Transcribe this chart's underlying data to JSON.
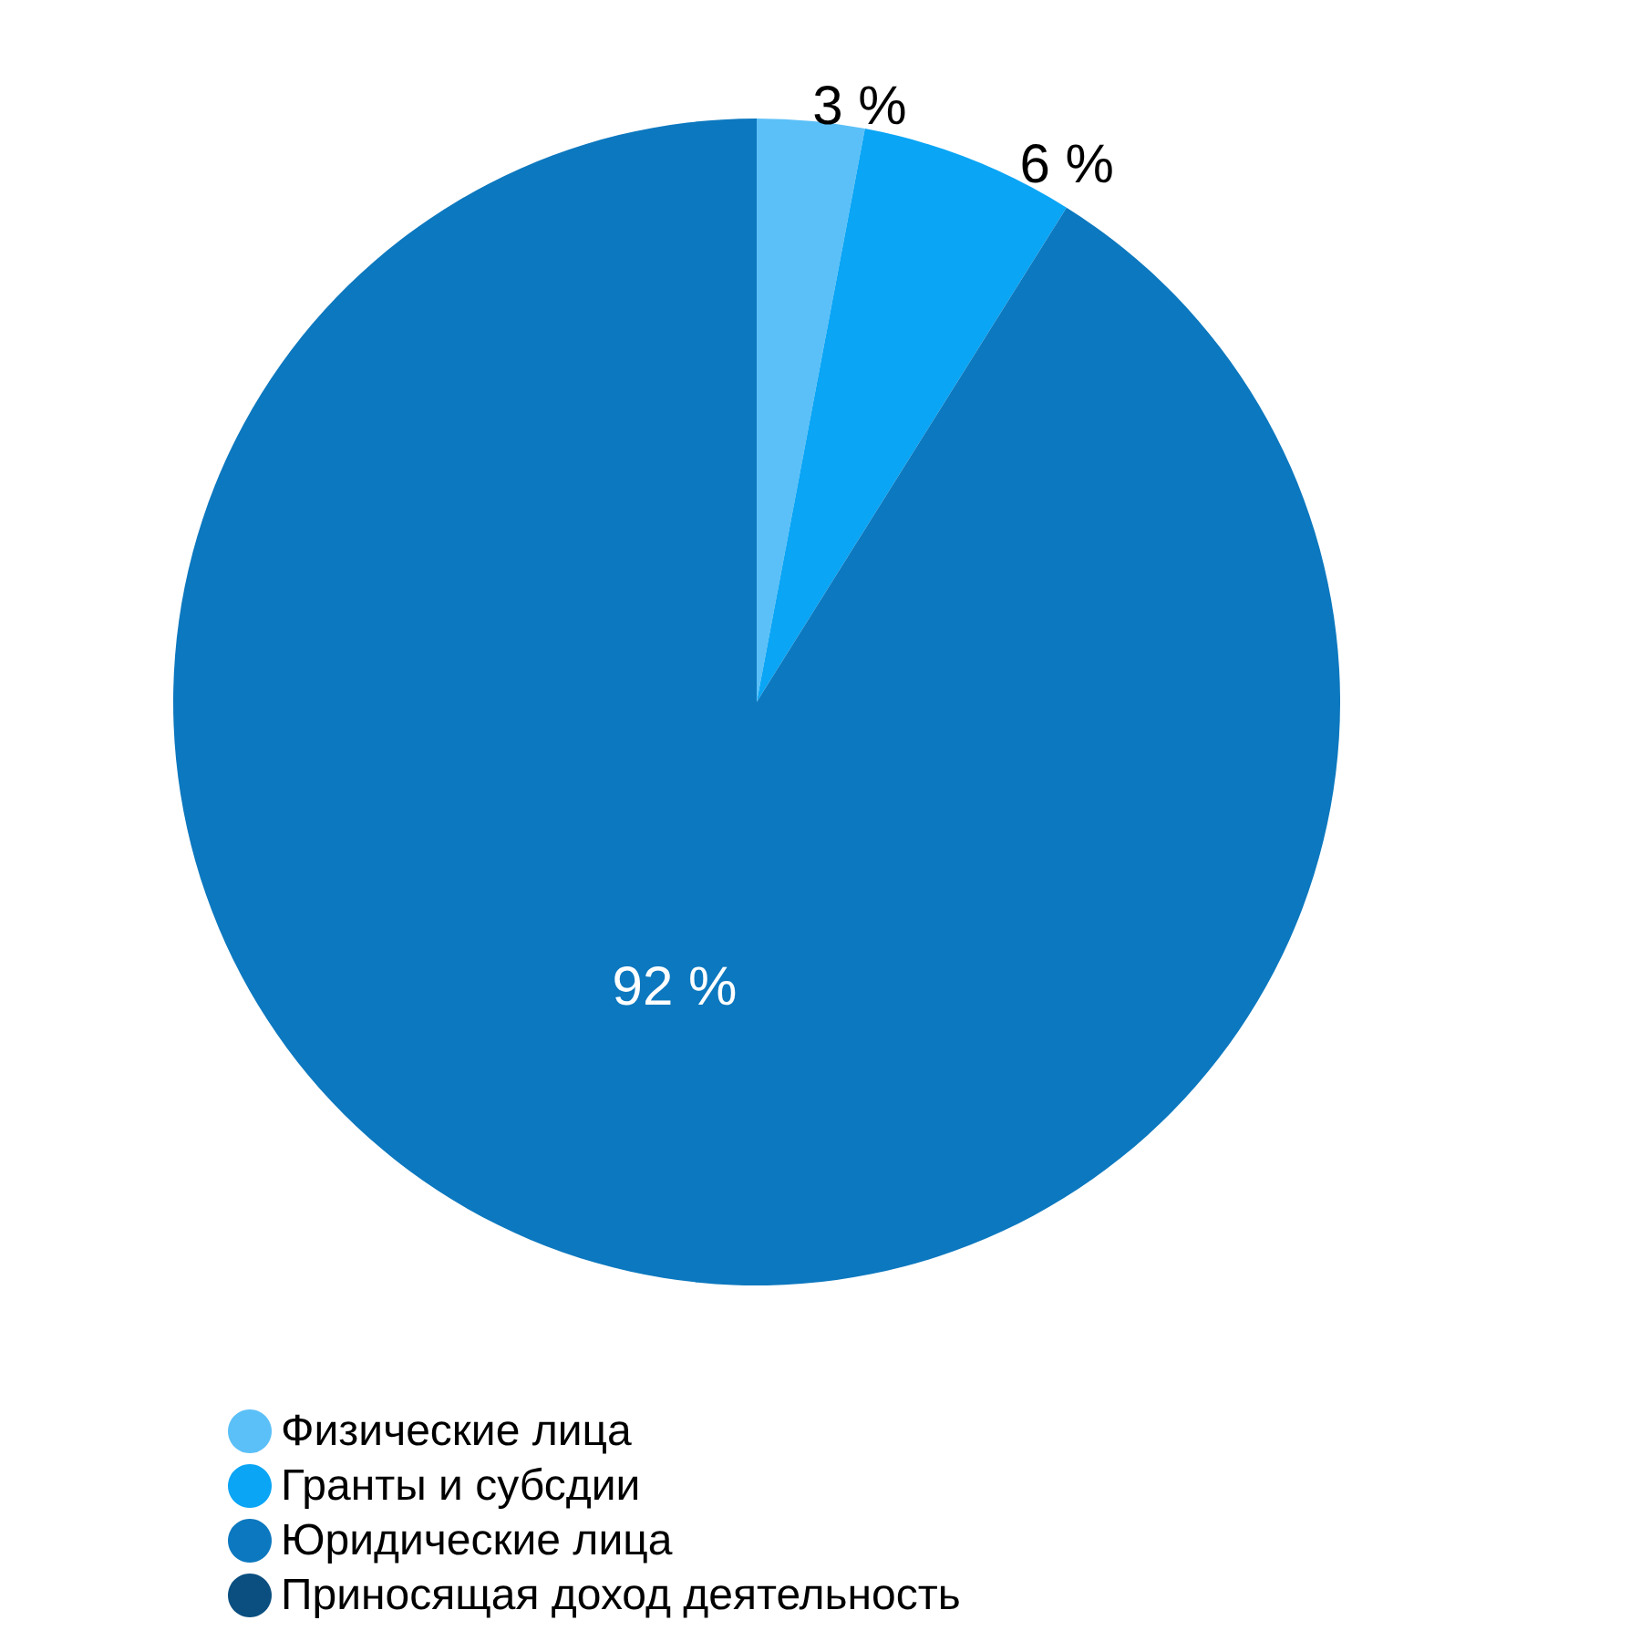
{
  "chart_data": {
    "type": "pie",
    "categories": [
      "Физические лица",
      "Гранты и субсдии",
      "Юридические лица",
      "Приносящая доход деятельность"
    ],
    "values": [
      3,
      6,
      92,
      0
    ],
    "colors": [
      "#5bc0f8",
      "#0aa5f5",
      "#0c78bf",
      "#0a4f80"
    ],
    "value_labels": [
      "3 %",
      "6 %",
      "92 %",
      null
    ],
    "legend": "bottom left"
  }
}
